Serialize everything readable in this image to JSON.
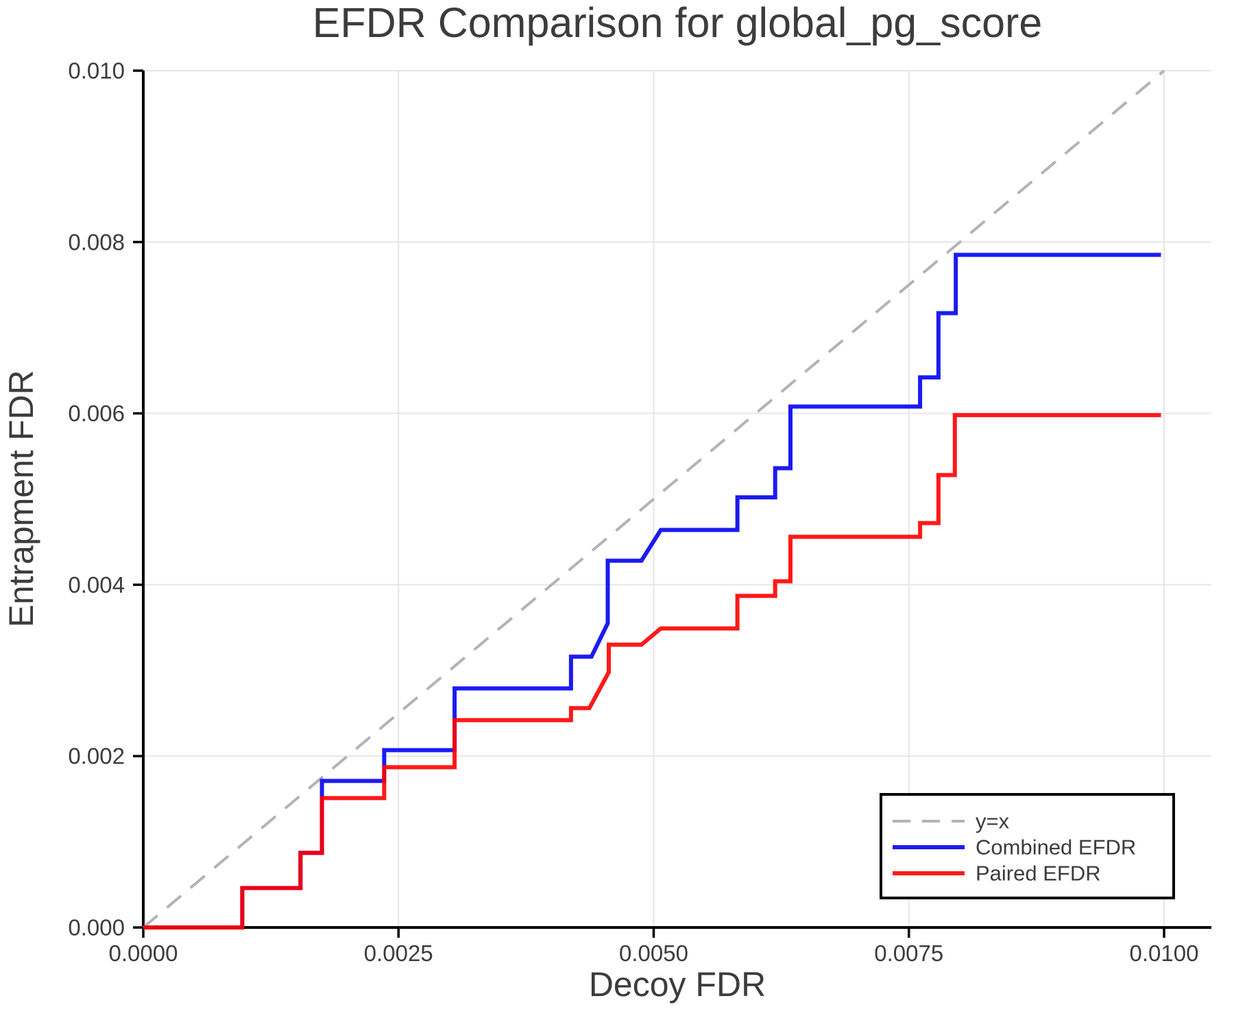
{
  "title": "EFDR Comparison for global_pg_score",
  "x_axis": {
    "label": "Decoy FDR",
    "ticks": [
      {
        "value": 0.0,
        "label": "0.0000"
      },
      {
        "value": 0.0025,
        "label": "0.0025"
      },
      {
        "value": 0.005,
        "label": "0.0050"
      },
      {
        "value": 0.0075,
        "label": "0.0075"
      },
      {
        "value": 0.01,
        "label": "0.0100"
      }
    ]
  },
  "y_axis": {
    "label": "Entrapment FDR",
    "ticks": [
      {
        "value": 0.0,
        "label": "0.000"
      },
      {
        "value": 0.002,
        "label": "0.002"
      },
      {
        "value": 0.004,
        "label": "0.004"
      },
      {
        "value": 0.006,
        "label": "0.006"
      },
      {
        "value": 0.008,
        "label": "0.008"
      },
      {
        "value": 0.01,
        "label": "0.010"
      }
    ]
  },
  "legend": {
    "items": [
      {
        "label": "y=x",
        "color": "#b3b3b3",
        "dashed": true
      },
      {
        "label": "Combined EFDR",
        "color": "#0202f0",
        "dashed": false
      },
      {
        "label": "Paired EFDR",
        "color": "#ff0000",
        "dashed": false
      }
    ]
  },
  "colors": {
    "identity": "#b3b3b3",
    "combined": "#0202f0",
    "paired": "#ff0000",
    "grid": "#e6e6e6",
    "spine": "#000000",
    "text": "#3c3c3c"
  },
  "chart_data": {
    "type": "line",
    "title": "EFDR Comparison for global_pg_score",
    "xlabel": "Decoy FDR",
    "ylabel": "Entrapment FDR",
    "xlim": [
      0,
      0.01047
    ],
    "ylim": [
      0,
      0.01
    ],
    "grid": true,
    "legend_position": "lower right",
    "series": [
      {
        "name": "y=x",
        "style": "dashed",
        "color": "#b3b3b3",
        "points": [
          [
            0,
            0
          ],
          [
            0.01,
            0.01
          ]
        ]
      },
      {
        "name": "Combined EFDR",
        "style": "solid",
        "color": "#0202f0",
        "points": [
          [
            0.0,
            0.0
          ],
          [
            0.00097,
            0.0
          ],
          [
            0.00097,
            0.00046
          ],
          [
            0.00154,
            0.00046
          ],
          [
            0.00154,
            0.00087
          ],
          [
            0.00175,
            0.00087
          ],
          [
            0.00175,
            0.00171
          ],
          [
            0.00236,
            0.00171
          ],
          [
            0.00236,
            0.00207
          ],
          [
            0.00305,
            0.00207
          ],
          [
            0.00305,
            0.00279
          ],
          [
            0.00419,
            0.00279
          ],
          [
            0.00419,
            0.00316
          ],
          [
            0.00439,
            0.00316
          ],
          [
            0.00455,
            0.00355
          ],
          [
            0.00455,
            0.00428
          ],
          [
            0.00488,
            0.00428
          ],
          [
            0.00507,
            0.00464
          ],
          [
            0.00582,
            0.00464
          ],
          [
            0.00582,
            0.00502
          ],
          [
            0.00619,
            0.00502
          ],
          [
            0.00619,
            0.00536
          ],
          [
            0.00634,
            0.00536
          ],
          [
            0.00634,
            0.00608
          ],
          [
            0.00761,
            0.00608
          ],
          [
            0.00761,
            0.00642
          ],
          [
            0.00779,
            0.00642
          ],
          [
            0.00779,
            0.00717
          ],
          [
            0.00796,
            0.00717
          ],
          [
            0.00796,
            0.00785
          ],
          [
            0.00997,
            0.00785
          ]
        ]
      },
      {
        "name": "Paired EFDR",
        "style": "solid",
        "color": "#ff0000",
        "points": [
          [
            0.0,
            0.0
          ],
          [
            0.00097,
            0.0
          ],
          [
            0.00097,
            0.00046
          ],
          [
            0.00154,
            0.00046
          ],
          [
            0.00154,
            0.00087
          ],
          [
            0.00175,
            0.00087
          ],
          [
            0.00175,
            0.00151
          ],
          [
            0.00236,
            0.00151
          ],
          [
            0.00236,
            0.00187
          ],
          [
            0.00305,
            0.00187
          ],
          [
            0.00305,
            0.00242
          ],
          [
            0.00419,
            0.00242
          ],
          [
            0.00419,
            0.00256
          ],
          [
            0.00437,
            0.00256
          ],
          [
            0.00456,
            0.00298
          ],
          [
            0.00456,
            0.0033
          ],
          [
            0.00488,
            0.0033
          ],
          [
            0.00507,
            0.00349
          ],
          [
            0.00582,
            0.00349
          ],
          [
            0.00582,
            0.00387
          ],
          [
            0.00619,
            0.00387
          ],
          [
            0.00619,
            0.00404
          ],
          [
            0.00634,
            0.00404
          ],
          [
            0.00634,
            0.00456
          ],
          [
            0.00761,
            0.00456
          ],
          [
            0.00761,
            0.00472
          ],
          [
            0.00779,
            0.00472
          ],
          [
            0.00779,
            0.00528
          ],
          [
            0.00795,
            0.00528
          ],
          [
            0.00795,
            0.00598
          ],
          [
            0.00997,
            0.00598
          ]
        ]
      }
    ]
  }
}
